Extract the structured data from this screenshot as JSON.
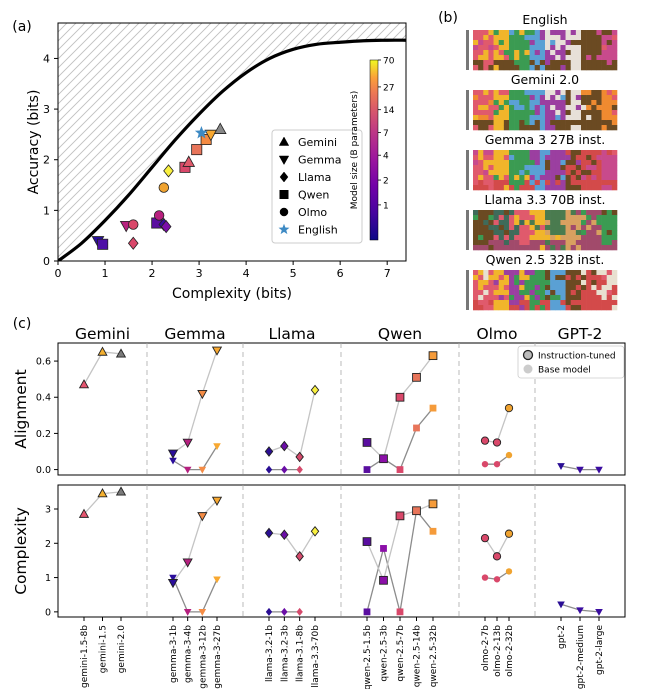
{
  "chart_data": [
    {
      "panel_label": "(a)",
      "type": "scatter",
      "xlabel": "Complexity (bits)",
      "ylabel": "Accuracy (bits)",
      "xlim": [
        0,
        7.4
      ],
      "ylim": [
        0,
        4.7
      ],
      "xticks": [
        "0",
        "1",
        "2",
        "3",
        "4",
        "5",
        "6",
        "7"
      ],
      "yticks": [
        "0",
        "1",
        "2",
        "3",
        "4"
      ],
      "frontier": [
        [
          0,
          0
        ],
        [
          0.5,
          0.35
        ],
        [
          1,
          0.8
        ],
        [
          1.5,
          1.3
        ],
        [
          2,
          1.85
        ],
        [
          2.5,
          2.4
        ],
        [
          3,
          2.9
        ],
        [
          3.5,
          3.35
        ],
        [
          4,
          3.72
        ],
        [
          4.5,
          4.0
        ],
        [
          5,
          4.18
        ],
        [
          5.5,
          4.28
        ],
        [
          6,
          4.32
        ],
        [
          6.5,
          4.35
        ],
        [
          7,
          4.36
        ],
        [
          7.4,
          4.36
        ]
      ],
      "legend": [
        {
          "label": "Gemini",
          "marker": "triangle-up"
        },
        {
          "label": "Gemma",
          "marker": "triangle-down"
        },
        {
          "label": "Llama",
          "marker": "diamond"
        },
        {
          "label": "Qwen",
          "marker": "square"
        },
        {
          "label": "Olmo",
          "marker": "circle"
        },
        {
          "label": "English",
          "marker": "star"
        }
      ],
      "colorbar": {
        "label": "Model size (B parameters)",
        "ticks": [
          "70",
          "27",
          "14",
          "7",
          "4",
          "2",
          "1"
        ]
      },
      "points": [
        {
          "x": 0.85,
          "y": 0.4,
          "marker": "triangle-down",
          "color": "#2a0f9e"
        },
        {
          "x": 0.95,
          "y": 0.33,
          "marker": "square",
          "color": "#4d0fa6"
        },
        {
          "x": 1.45,
          "y": 0.7,
          "marker": "triangle-down",
          "color": "#b8207f"
        },
        {
          "x": 1.6,
          "y": 0.72,
          "marker": "circle",
          "color": "#d9486a"
        },
        {
          "x": 1.6,
          "y": 0.35,
          "marker": "diamond",
          "color": "#d9486a"
        },
        {
          "x": 2.1,
          "y": 0.75,
          "marker": "square",
          "color": "#5a0ea0"
        },
        {
          "x": 2.15,
          "y": 0.9,
          "marker": "circle",
          "color": "#b8207f"
        },
        {
          "x": 2.25,
          "y": 0.72,
          "marker": "diamond",
          "color": "#3a0ca0"
        },
        {
          "x": 2.3,
          "y": 0.68,
          "marker": "diamond",
          "color": "#7b0fa8"
        },
        {
          "x": 2.25,
          "y": 1.45,
          "marker": "circle",
          "color": "#f0a330"
        },
        {
          "x": 2.35,
          "y": 1.78,
          "marker": "diamond",
          "color": "#f9f040"
        },
        {
          "x": 2.7,
          "y": 1.85,
          "marker": "square",
          "color": "#d9486a"
        },
        {
          "x": 2.78,
          "y": 1.95,
          "marker": "triangle-up",
          "color": "#e0596a"
        },
        {
          "x": 2.95,
          "y": 2.2,
          "marker": "square",
          "color": "#e8755a"
        },
        {
          "x": 3.15,
          "y": 2.4,
          "marker": "square",
          "color": "#f58a42"
        },
        {
          "x": 3.25,
          "y": 2.5,
          "marker": "triangle-down",
          "color": "#f8a830"
        },
        {
          "x": 3.05,
          "y": 2.53,
          "marker": "star",
          "color": "#3d8ac4"
        },
        {
          "x": 3.45,
          "y": 2.6,
          "marker": "triangle-up",
          "color": "#888888"
        }
      ]
    },
    {
      "panel_label": "(c)",
      "type": "line",
      "groups": [
        "Gemini",
        "Gemma",
        "Llama",
        "Qwen",
        "Olmo",
        "GPT-2"
      ],
      "categories": [
        "gemini-1.5-8b",
        "gemini-1.5",
        "gemini-2.0",
        "gemma-3-1b",
        "gemma-3-4b",
        "gemma-3-12b",
        "gemma-3-27b",
        "llama-3.2-1b",
        "llama-3.2-3b",
        "llama-3.1-8b",
        "llama-3.3-70b",
        "qwen-2.5-1.5b",
        "qwen-2.5-3b",
        "qwen-2.5-7b",
        "qwen-2.5-14b",
        "qwen-2.5-32b",
        "olmo-2-7b",
        "olmo-2-13b",
        "olmo-2-32b",
        "gpt-2",
        "gpt-2-medium",
        "gpt-2-large"
      ],
      "legend": [
        "Instruction-tuned",
        "Base model"
      ],
      "alignment": {
        "ylabel": "Alignment",
        "yticks": [
          "0.0",
          "0.2",
          "0.4",
          "0.6"
        ],
        "ylim": [
          -0.03,
          0.7
        ],
        "instruction_tuned": [
          0.47,
          0.65,
          0.64,
          0.09,
          0.15,
          0.42,
          0.66,
          0.1,
          0.13,
          0.07,
          0.44,
          0.15,
          0.06,
          0.4,
          0.51,
          0.63,
          0.16,
          0.15,
          0.34,
          null,
          null,
          null
        ],
        "base_model": [
          null,
          null,
          null,
          0.05,
          0.0,
          0.0,
          0.13,
          0.0,
          0.0,
          0.0,
          null,
          0.0,
          0.06,
          0.0,
          0.23,
          0.34,
          0.03,
          0.03,
          0.08,
          0.02,
          0.0,
          0.0
        ]
      },
      "complexity": {
        "ylabel": "Complexity",
        "yticks": [
          "0",
          "1",
          "2",
          "3"
        ],
        "ylim": [
          -0.15,
          3.7
        ],
        "instruction_tuned": [
          2.85,
          3.45,
          3.5,
          0.85,
          1.45,
          2.8,
          3.25,
          2.3,
          2.25,
          1.62,
          2.35,
          2.05,
          0.92,
          2.8,
          2.95,
          3.15,
          2.15,
          1.62,
          2.28,
          null,
          null,
          null
        ],
        "base_model": [
          null,
          null,
          null,
          1.0,
          0.0,
          0.0,
          0.95,
          0.0,
          0.0,
          0.0,
          null,
          0.0,
          1.85,
          0.0,
          2.95,
          2.35,
          1.0,
          0.95,
          1.18,
          0.22,
          0.05,
          0.0
        ]
      },
      "colors": [
        "#e65570",
        "#f4b030",
        "#7a7a7a",
        "#2b0e9b",
        "#b5207f",
        "#f58c45",
        "#f8a830",
        "#2a0e94",
        "#6a0ea6",
        "#d54a6c",
        "#f9f040",
        "#5a0ea0",
        "#8b0fa8",
        "#d9486a",
        "#e8755a",
        "#f59b3a",
        "#d9486a",
        "#d9486a",
        "#f0a330",
        "#2a0e94",
        "#3a0ca0",
        "#3a0ca0"
      ],
      "markers": [
        "triangle-up",
        "triangle-up",
        "triangle-up",
        "triangle-down",
        "triangle-down",
        "triangle-down",
        "triangle-down",
        "diamond",
        "diamond",
        "diamond",
        "diamond",
        "square",
        "square",
        "square",
        "square",
        "square",
        "circle",
        "circle",
        "circle",
        "triangle-down",
        "triangle-down",
        "triangle-down"
      ]
    }
  ],
  "panel_b": {
    "label": "(b)",
    "titles": [
      "English",
      "Gemini 2.0",
      "Gemma 3 27B inst.",
      "Llama 3.3 70B inst.",
      "Qwen 2.5 32B inst."
    ]
  }
}
